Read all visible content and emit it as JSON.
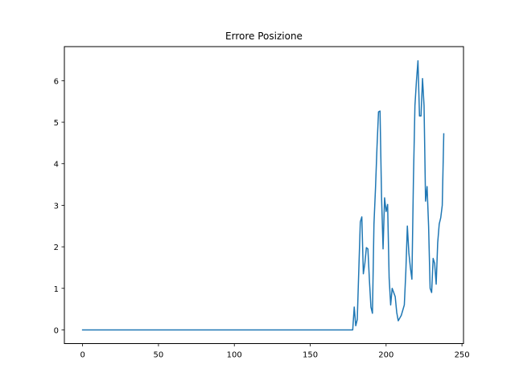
{
  "chart_data": {
    "type": "line",
    "title": "Errore Posizione",
    "xlabel": "",
    "ylabel": "",
    "xlim": [
      -12,
      251
    ],
    "ylim": [
      -0.33,
      6.82
    ],
    "xticks": [
      0,
      50,
      100,
      150,
      200,
      250
    ],
    "yticks": [
      0,
      1,
      2,
      3,
      4,
      5,
      6
    ],
    "grid": false,
    "legend": "none",
    "series": [
      {
        "color": "#1f77b4",
        "points": [
          [
            0,
            0.0
          ],
          [
            10,
            0.0
          ],
          [
            50,
            0.0
          ],
          [
            100,
            0.0
          ],
          [
            150,
            0.0
          ],
          [
            178,
            0.0
          ],
          [
            179,
            0.55
          ],
          [
            180,
            0.1
          ],
          [
            181,
            0.25
          ],
          [
            183,
            2.6
          ],
          [
            184,
            2.72
          ],
          [
            185,
            1.35
          ],
          [
            186,
            1.6
          ],
          [
            187,
            1.98
          ],
          [
            188,
            1.95
          ],
          [
            189,
            1.2
          ],
          [
            190,
            0.55
          ],
          [
            191,
            0.4
          ],
          [
            192,
            2.55
          ],
          [
            193,
            3.4
          ],
          [
            194,
            4.4
          ],
          [
            195,
            5.25
          ],
          [
            196,
            5.27
          ],
          [
            197,
            3.2
          ],
          [
            198,
            1.95
          ],
          [
            199,
            3.18
          ],
          [
            200,
            2.85
          ],
          [
            201,
            3.02
          ],
          [
            202,
            1.25
          ],
          [
            203,
            0.6
          ],
          [
            204,
            1.0
          ],
          [
            205,
            0.9
          ],
          [
            206,
            0.8
          ],
          [
            207,
            0.42
          ],
          [
            208,
            0.22
          ],
          [
            210,
            0.35
          ],
          [
            212,
            0.6
          ],
          [
            213,
            1.4
          ],
          [
            214,
            2.5
          ],
          [
            215,
            1.85
          ],
          [
            216,
            1.5
          ],
          [
            217,
            1.22
          ],
          [
            218,
            3.6
          ],
          [
            219,
            5.4
          ],
          [
            220,
            6.0
          ],
          [
            221,
            6.48
          ],
          [
            222,
            5.15
          ],
          [
            223,
            5.15
          ],
          [
            224,
            6.05
          ],
          [
            225,
            5.4
          ],
          [
            226,
            3.1
          ],
          [
            227,
            3.45
          ],
          [
            228,
            2.5
          ],
          [
            229,
            1.0
          ],
          [
            230,
            0.9
          ],
          [
            231,
            1.72
          ],
          [
            232,
            1.6
          ],
          [
            233,
            1.1
          ],
          [
            234,
            2.1
          ],
          [
            235,
            2.55
          ],
          [
            236,
            2.7
          ],
          [
            237,
            3.0
          ],
          [
            238,
            4.72
          ]
        ]
      }
    ]
  }
}
